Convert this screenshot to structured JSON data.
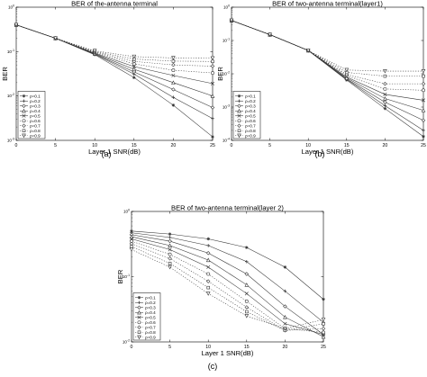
{
  "panel_captions": [
    "(a)",
    "(b)",
    "(c)"
  ],
  "chart_data": [
    {
      "type": "line",
      "title": "BER of the-antenna terminal",
      "xlabel": "Layer 1 SNR(dB)",
      "ylabel": "BER",
      "x": [
        0,
        5,
        10,
        15,
        20,
        25
      ],
      "x_ticks": [
        "0",
        "5",
        "10",
        "15",
        "20",
        "25"
      ],
      "xlim": [
        0,
        25
      ],
      "y_scale": "log",
      "ylim_exponents": [
        -3,
        0
      ],
      "y_tick_exponents": [
        0,
        -1,
        -2,
        -3
      ],
      "grid": false,
      "legend_position": "bottom-left",
      "series": [
        {
          "name": "ρ=0.1",
          "values": [
            0.4,
            0.2,
            0.085,
            0.026,
            0.0062,
            0.0012
          ]
        },
        {
          "name": "ρ=0.2",
          "values": [
            0.4,
            0.2,
            0.087,
            0.031,
            0.0093,
            0.0031
          ]
        },
        {
          "name": "ρ=0.3",
          "values": [
            0.4,
            0.2,
            0.088,
            0.035,
            0.014,
            0.0055
          ]
        },
        {
          "name": "ρ=0.4",
          "values": [
            0.4,
            0.2,
            0.09,
            0.04,
            0.02,
            0.01
          ]
        },
        {
          "name": "ρ=0.5",
          "values": [
            0.4,
            0.2,
            0.092,
            0.046,
            0.029,
            0.019
          ]
        },
        {
          "name": "ρ=0.6",
          "values": [
            0.4,
            0.2,
            0.094,
            0.053,
            0.038,
            0.033
          ]
        },
        {
          "name": "ρ=0.7",
          "values": [
            0.4,
            0.2,
            0.097,
            0.06,
            0.05,
            0.047
          ]
        },
        {
          "name": "ρ=0.8",
          "values": [
            0.4,
            0.2,
            0.1,
            0.068,
            0.061,
            0.06
          ]
        },
        {
          "name": "ρ=0.9",
          "values": [
            0.4,
            0.2,
            0.104,
            0.077,
            0.072,
            0.071
          ]
        }
      ]
    },
    {
      "type": "line",
      "title": "BER of two-antenna terminal(layer1)",
      "xlabel": "Layer 1 SNR(dB)",
      "ylabel": "BER",
      "x": [
        0,
        5,
        10,
        15,
        20,
        25
      ],
      "x_ticks": [
        "0",
        "5",
        "10",
        "15",
        "20",
        "25"
      ],
      "xlim": [
        0,
        25
      ],
      "y_scale": "log",
      "ylim_exponents": [
        -4,
        0
      ],
      "y_tick_exponents": [
        0,
        -1,
        -2,
        -3,
        -4
      ],
      "grid": false,
      "legend_position": "bottom-left",
      "series": [
        {
          "name": "ρ=0.1",
          "values": [
            0.4,
            0.15,
            0.05,
            0.0065,
            0.0009,
            0.00013
          ]
        },
        {
          "name": "ρ=0.2",
          "values": [
            0.4,
            0.15,
            0.05,
            0.0068,
            0.0011,
            0.0002
          ]
        },
        {
          "name": "ρ=0.3",
          "values": [
            0.4,
            0.15,
            0.05,
            0.007,
            0.0014,
            0.0004
          ]
        },
        {
          "name": "ρ=0.4",
          "values": [
            0.4,
            0.15,
            0.05,
            0.0075,
            0.0018,
            0.0008
          ]
        },
        {
          "name": "ρ=0.5",
          "values": [
            0.4,
            0.15,
            0.05,
            0.008,
            0.0024,
            0.0016
          ]
        },
        {
          "name": "ρ=0.6",
          "values": [
            0.4,
            0.15,
            0.05,
            0.0088,
            0.0035,
            0.0032
          ]
        },
        {
          "name": "ρ=0.7",
          "values": [
            0.4,
            0.15,
            0.05,
            0.0095,
            0.005,
            0.005
          ]
        },
        {
          "name": "ρ=0.8",
          "values": [
            0.4,
            0.15,
            0.05,
            0.011,
            0.0085,
            0.0085
          ]
        },
        {
          "name": "ρ=0.9",
          "values": [
            0.4,
            0.15,
            0.05,
            0.013,
            0.012,
            0.012
          ]
        }
      ]
    },
    {
      "type": "line",
      "title": "BER of two-antenna terminal(layer 2)",
      "xlabel": "Layer 1 SNR(dB)",
      "ylabel": "BER",
      "x": [
        0,
        5,
        10,
        15,
        20,
        25
      ],
      "x_ticks": [
        "0",
        "5",
        "10",
        "15",
        "20",
        "25"
      ],
      "xlim": [
        0,
        25
      ],
      "y_scale": "log",
      "ylim_exponents": [
        -2,
        0
      ],
      "y_tick_exponents": [
        0,
        -1,
        -2
      ],
      "grid": false,
      "legend_position": "bottom-left",
      "series": [
        {
          "name": "ρ=0.1",
          "values": [
            0.5,
            0.45,
            0.38,
            0.28,
            0.14,
            0.045
          ]
        },
        {
          "name": "ρ=0.2",
          "values": [
            0.47,
            0.4,
            0.3,
            0.17,
            0.06,
            0.02
          ]
        },
        {
          "name": "ρ=0.3",
          "values": [
            0.44,
            0.35,
            0.23,
            0.11,
            0.035,
            0.013
          ]
        },
        {
          "name": "ρ=0.4",
          "values": [
            0.41,
            0.3,
            0.18,
            0.075,
            0.024,
            0.012
          ]
        },
        {
          "name": "ρ=0.5",
          "values": [
            0.38,
            0.26,
            0.14,
            0.055,
            0.019,
            0.013
          ]
        },
        {
          "name": "ρ=0.6",
          "values": [
            0.35,
            0.22,
            0.11,
            0.042,
            0.016,
            0.014
          ]
        },
        {
          "name": "ρ=0.7",
          "values": [
            0.32,
            0.19,
            0.085,
            0.034,
            0.015,
            0.016
          ]
        },
        {
          "name": "ρ=0.8",
          "values": [
            0.29,
            0.16,
            0.068,
            0.029,
            0.015,
            0.019
          ]
        },
        {
          "name": "ρ=0.9",
          "values": [
            0.26,
            0.14,
            0.055,
            0.025,
            0.016,
            0.022
          ]
        }
      ]
    }
  ]
}
